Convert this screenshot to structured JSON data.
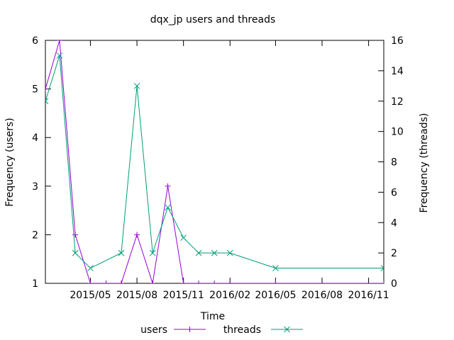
{
  "chart_data": {
    "type": "line",
    "title": "dqx_jp users and threads",
    "xlabel": "Time",
    "ylabel_left": "Frequency (users)",
    "ylabel_right": "Frequency (threads)",
    "x_ticks": [
      "2015/05",
      "2015/08",
      "2015/11",
      "2016/02",
      "2016/05",
      "2016/08",
      "2016/11"
    ],
    "x_tick_dates": [
      "2015-05-01",
      "2015-08-01",
      "2015-11-01",
      "2016-02-01",
      "2016-05-01",
      "2016-08-01",
      "2016-11-01"
    ],
    "xlim": [
      "2015-02-01",
      "2016-12-01"
    ],
    "ylim_left": [
      1,
      6
    ],
    "y_ticks_left": [
      1,
      2,
      3,
      4,
      5,
      6
    ],
    "ylim_right": [
      0,
      16
    ],
    "y_ticks_right": [
      0,
      2,
      4,
      6,
      8,
      10,
      12,
      14,
      16
    ],
    "grid": false,
    "legend_position": "bottom",
    "series": [
      {
        "name": "users",
        "axis": "left",
        "color": "#9400d3",
        "marker": "plus",
        "points": [
          {
            "x": "2015-02-01",
            "y": 5
          },
          {
            "x": "2015-03-01",
            "y": 6
          },
          {
            "x": "2015-04-01",
            "y": 2
          },
          {
            "x": "2015-05-01",
            "y": 1
          },
          {
            "x": "2015-06-01",
            "y": 1
          },
          {
            "x": "2015-07-01",
            "y": 1
          },
          {
            "x": "2015-08-01",
            "y": 2
          },
          {
            "x": "2015-09-01",
            "y": 1
          },
          {
            "x": "2015-10-01",
            "y": 3
          },
          {
            "x": "2015-11-01",
            "y": 1
          },
          {
            "x": "2015-12-01",
            "y": 1
          },
          {
            "x": "2016-01-01",
            "y": 1
          },
          {
            "x": "2016-02-01",
            "y": 1
          },
          {
            "x": "2016-05-01",
            "y": 1
          },
          {
            "x": "2016-12-01",
            "y": 1
          }
        ]
      },
      {
        "name": "threads",
        "axis": "right",
        "color": "#009e73",
        "marker": "cross",
        "points": [
          {
            "x": "2015-02-01",
            "y": 12
          },
          {
            "x": "2015-03-01",
            "y": 15
          },
          {
            "x": "2015-04-01",
            "y": 2
          },
          {
            "x": "2015-05-01",
            "y": 1
          },
          {
            "x": "2015-07-01",
            "y": 2
          },
          {
            "x": "2015-08-01",
            "y": 13
          },
          {
            "x": "2015-09-01",
            "y": 2
          },
          {
            "x": "2015-10-01",
            "y": 5
          },
          {
            "x": "2015-11-01",
            "y": 3
          },
          {
            "x": "2015-12-01",
            "y": 2
          },
          {
            "x": "2016-01-01",
            "y": 2
          },
          {
            "x": "2016-02-01",
            "y": 2
          },
          {
            "x": "2016-05-01",
            "y": 1
          },
          {
            "x": "2016-12-01",
            "y": 1
          }
        ]
      }
    ]
  }
}
